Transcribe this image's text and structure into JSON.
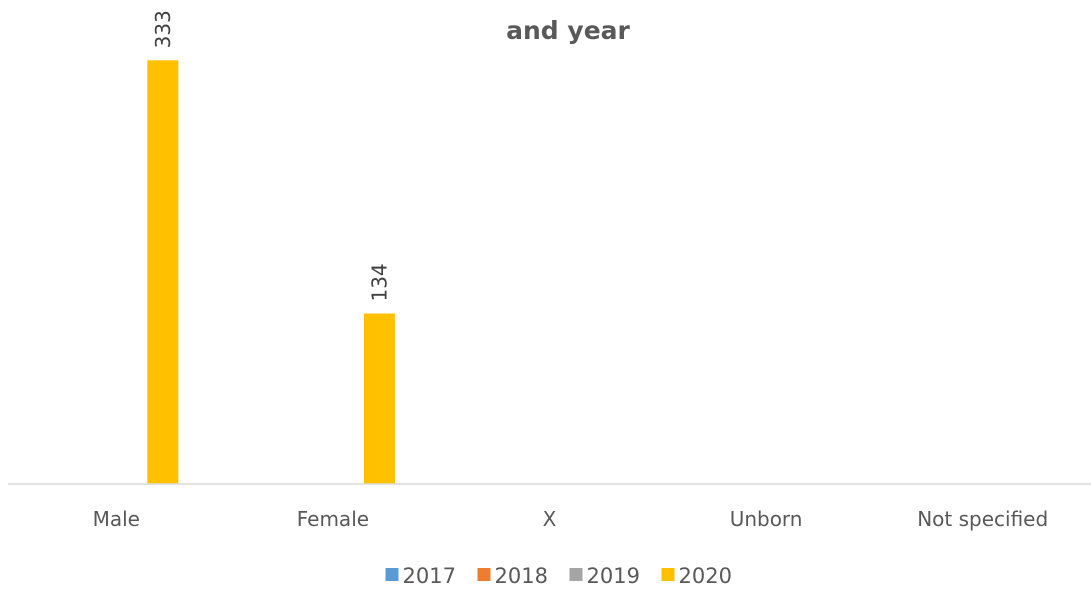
{
  "chart_data": {
    "type": "bar",
    "title_line1": "",
    "title_line2": "and year",
    "categories": [
      "Male",
      "Female",
      "X",
      "Unborn",
      "Not specified"
    ],
    "series": [
      {
        "name": "2017",
        "color": "#5B9BD5",
        "values": [
          0,
          0,
          0,
          0,
          0
        ]
      },
      {
        "name": "2018",
        "color": "#ED7D31",
        "values": [
          0,
          0,
          0,
          0,
          0
        ]
      },
      {
        "name": "2019",
        "color": "#A5A5A5",
        "values": [
          0,
          0,
          0,
          0,
          0
        ]
      },
      {
        "name": "2020",
        "color": "#FFC000",
        "values": [
          333,
          134,
          0,
          0,
          0
        ]
      }
    ],
    "data_labels": [
      {
        "category": "Male",
        "series": "2020",
        "text": "333"
      },
      {
        "category": "Female",
        "series": "2020",
        "text": "134"
      }
    ],
    "xlabel": "",
    "ylabel": "",
    "ylim": [
      0,
      360
    ],
    "legend": "bottom",
    "grid": false
  }
}
